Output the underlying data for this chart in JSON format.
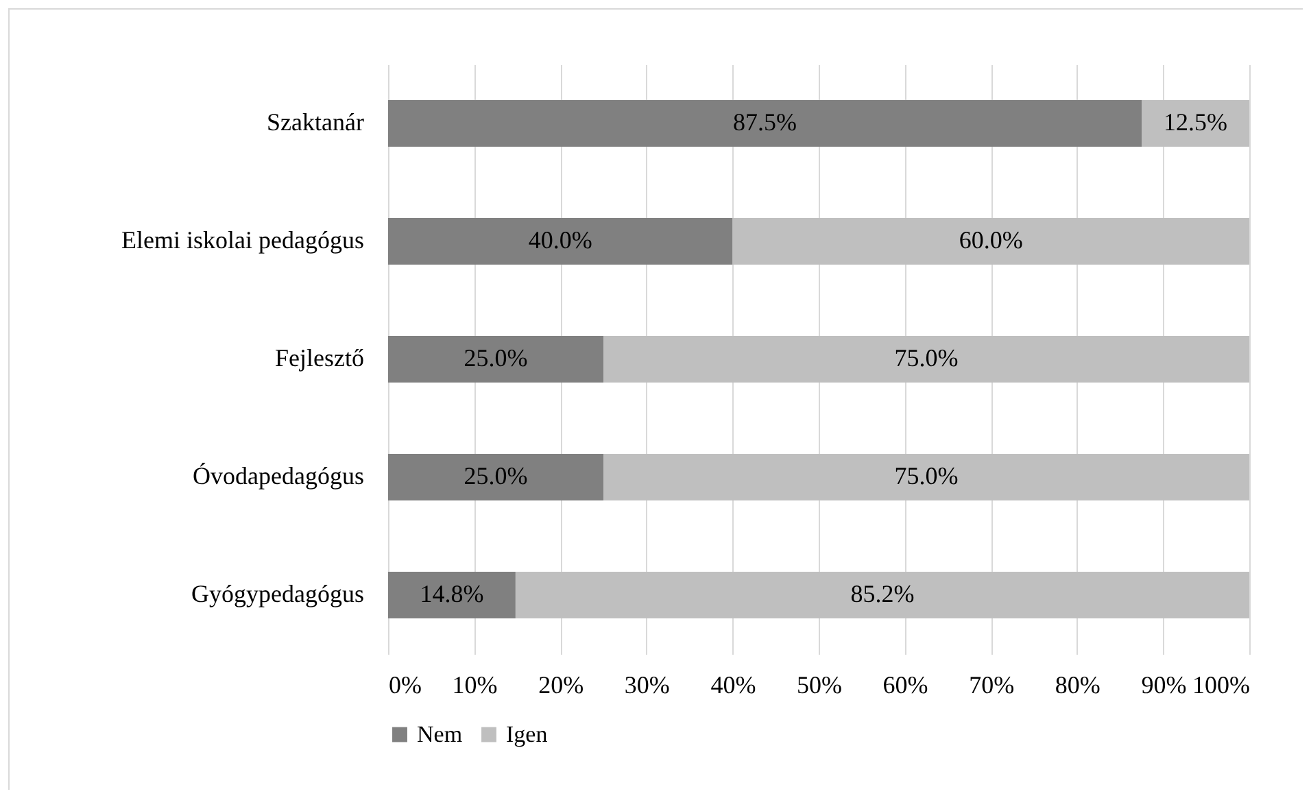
{
  "chart_data": {
    "type": "bar",
    "orientation": "horizontal",
    "stacked": true,
    "categories": [
      "Szaktanár",
      "Elemi iskolai pedagógus",
      "Fejlesztő",
      "Óvodapedagógus",
      "Gyógypedagógus"
    ],
    "series": [
      {
        "name": "Nem",
        "color": "#808080",
        "values": [
          87.5,
          40.0,
          25.0,
          25.0,
          14.8
        ],
        "value_labels": [
          "87.5%",
          "40.0%",
          "25.0%",
          "25.0%",
          "14.8%"
        ]
      },
      {
        "name": "Igen",
        "color": "#bfbfbf",
        "values": [
          12.5,
          60.0,
          75.0,
          75.0,
          85.2
        ],
        "value_labels": [
          "12.5%",
          "60.0%",
          "75.0%",
          "75.0%",
          "85.2%"
        ]
      }
    ],
    "xlim": [
      0,
      100
    ],
    "xticks": [
      {
        "value": 0,
        "label": "0%"
      },
      {
        "value": 10,
        "label": "10%"
      },
      {
        "value": 20,
        "label": "20%"
      },
      {
        "value": 30,
        "label": "30%"
      },
      {
        "value": 40,
        "label": "40%"
      },
      {
        "value": 50,
        "label": "50%"
      },
      {
        "value": 60,
        "label": "60%"
      },
      {
        "value": 70,
        "label": "70%"
      },
      {
        "value": 80,
        "label": "80%"
      },
      {
        "value": 90,
        "label": "90%"
      },
      {
        "value": 100,
        "label": "100%"
      }
    ],
    "grid": "x",
    "legend": "bottom"
  }
}
